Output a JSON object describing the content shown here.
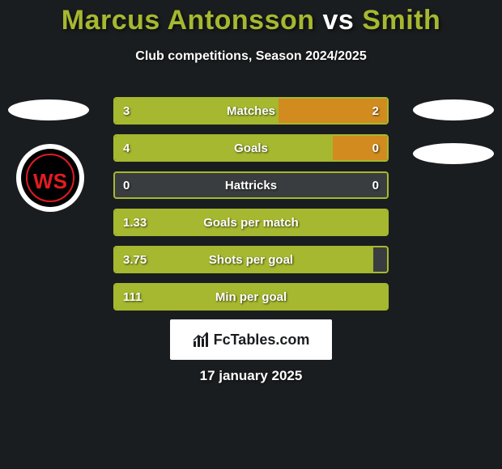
{
  "header": {
    "title_player1": "Marcus Antonsson",
    "title_vs": "vs",
    "title_player2": "Smith",
    "title_color_player": "#a6b82f",
    "title_color_vs": "#ffffff",
    "subtitle": "Club competitions, Season 2024/2025"
  },
  "colors": {
    "background": "#1a1d1f",
    "bar_track": "#3a3d3f",
    "player1_fill": "#a6b82f",
    "player2_fill": "#d18b1f",
    "border_active": "#a6b82f",
    "text": "#ffffff"
  },
  "badge_left": {
    "ring_color": "#e31b23",
    "bg_outer": "#ffffff",
    "bg_inner": "#000000",
    "letters": "WS"
  },
  "stats": [
    {
      "label": "Matches",
      "left_value": "3",
      "right_value": "2",
      "left_pct": 60,
      "right_pct": 40
    },
    {
      "label": "Goals",
      "left_value": "4",
      "right_value": "0",
      "left_pct": 80,
      "right_pct": 20
    },
    {
      "label": "Hattricks",
      "left_value": "0",
      "right_value": "0",
      "left_pct": 0,
      "right_pct": 0
    },
    {
      "label": "Goals per match",
      "left_value": "1.33",
      "right_value": "",
      "left_pct": 100,
      "right_pct": 0
    },
    {
      "label": "Shots per goal",
      "left_value": "3.75",
      "right_value": "",
      "left_pct": 95,
      "right_pct": 0
    },
    {
      "label": "Min per goal",
      "left_value": "111",
      "right_value": "",
      "left_pct": 100,
      "right_pct": 0
    }
  ],
  "branding": {
    "text": "FcTables.com"
  },
  "footer": {
    "date": "17 january 2025"
  }
}
